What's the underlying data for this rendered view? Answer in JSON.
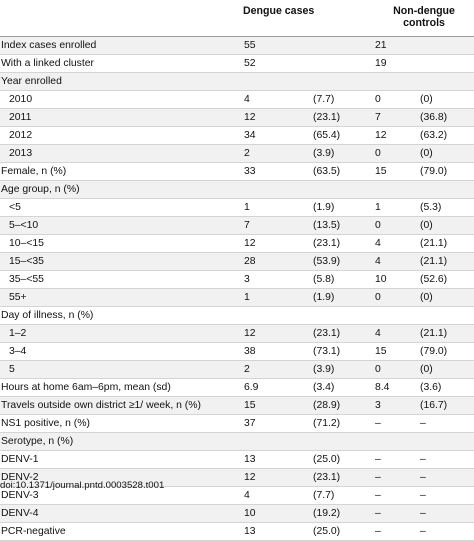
{
  "table": {
    "headers": {
      "dengue": "Dengue cases",
      "nondengue_line1": "Non-dengue",
      "nondengue_line2": "controls"
    },
    "rows": [
      {
        "label": "Index cases enrolled",
        "indent": false,
        "dv": "55",
        "dp": "",
        "nv": "21",
        "np": ""
      },
      {
        "label": "With a linked cluster",
        "indent": false,
        "dv": "52",
        "dp": "",
        "nv": "19",
        "np": ""
      },
      {
        "label": "Year enrolled",
        "indent": false,
        "dv": "",
        "dp": "",
        "nv": "",
        "np": ""
      },
      {
        "label": "2010",
        "indent": true,
        "dv": "4",
        "dp": "(7.7)",
        "nv": "0",
        "np": "(0)"
      },
      {
        "label": "2011",
        "indent": true,
        "dv": "12",
        "dp": "(23.1)",
        "nv": "7",
        "np": "(36.8)"
      },
      {
        "label": "2012",
        "indent": true,
        "dv": "34",
        "dp": "(65.4)",
        "nv": "12",
        "np": "(63.2)"
      },
      {
        "label": "2013",
        "indent": true,
        "dv": "2",
        "dp": "(3.9)",
        "nv": "0",
        "np": "(0)"
      },
      {
        "label": "Female, n (%)",
        "indent": false,
        "dv": "33",
        "dp": "(63.5)",
        "nv": "15",
        "np": "(79.0)"
      },
      {
        "label": "Age group, n (%)",
        "indent": false,
        "dv": "",
        "dp": "",
        "nv": "",
        "np": ""
      },
      {
        "label": "<5",
        "indent": true,
        "dv": "1",
        "dp": "(1.9)",
        "nv": "1",
        "np": "(5.3)"
      },
      {
        "label": "5–<10",
        "indent": true,
        "dv": "7",
        "dp": "(13.5)",
        "nv": "0",
        "np": "(0)"
      },
      {
        "label": "10–<15",
        "indent": true,
        "dv": "12",
        "dp": "(23.1)",
        "nv": "4",
        "np": "(21.1)"
      },
      {
        "label": "15–<35",
        "indent": true,
        "dv": "28",
        "dp": "(53.9)",
        "nv": "4",
        "np": "(21.1)"
      },
      {
        "label": "35–<55",
        "indent": true,
        "dv": "3",
        "dp": "(5.8)",
        "nv": "10",
        "np": "(52.6)"
      },
      {
        "label": "55+",
        "indent": true,
        "dv": "1",
        "dp": "(1.9)",
        "nv": "0",
        "np": "(0)"
      },
      {
        "label": "Day of illness, n (%)",
        "indent": false,
        "dv": "",
        "dp": "",
        "nv": "",
        "np": ""
      },
      {
        "label": "1–2",
        "indent": true,
        "dv": "12",
        "dp": "(23.1)",
        "nv": "4",
        "np": "(21.1)"
      },
      {
        "label": "3–4",
        "indent": true,
        "dv": "38",
        "dp": "(73.1)",
        "nv": "15",
        "np": "(79.0)"
      },
      {
        "label": "5",
        "indent": true,
        "dv": "2",
        "dp": "(3.9)",
        "nv": "0",
        "np": "(0)"
      },
      {
        "label": "Hours at home 6am–6pm, mean (sd)",
        "indent": false,
        "dv": "6.9",
        "dp": "(3.4)",
        "nv": "8.4",
        "np": "(3.6)"
      },
      {
        "label": "Travels outside own district ≥1/ week, n (%)",
        "indent": false,
        "dv": "15",
        "dp": "(28.9)",
        "nv": "3",
        "np": "(16.7)"
      },
      {
        "label": "NS1 positive, n (%)",
        "indent": false,
        "dv": "37",
        "dp": "(71.2)",
        "nv": "–",
        "np": "–"
      },
      {
        "label": "Serotype, n (%)",
        "indent": false,
        "dv": "",
        "dp": "",
        "nv": "",
        "np": ""
      },
      {
        "label": "DENV-1",
        "indent": false,
        "dv": "13",
        "dp": "(25.0)",
        "nv": "–",
        "np": "–"
      },
      {
        "label": "DENV-2",
        "indent": false,
        "dv": "12",
        "dp": "(23.1)",
        "nv": "–",
        "np": "–"
      },
      {
        "label": "DENV-3",
        "indent": false,
        "dv": "4",
        "dp": "(7.7)",
        "nv": "–",
        "np": "–"
      },
      {
        "label": "DENV-4",
        "indent": false,
        "dv": "10",
        "dp": "(19.2)",
        "nv": "–",
        "np": "–"
      },
      {
        "label": "PCR-negative",
        "indent": false,
        "dv": "13",
        "dp": "(25.0)",
        "nv": "–",
        "np": "–"
      }
    ]
  },
  "footnote": "doi:10.1371/journal.pntd.0003528.t001"
}
